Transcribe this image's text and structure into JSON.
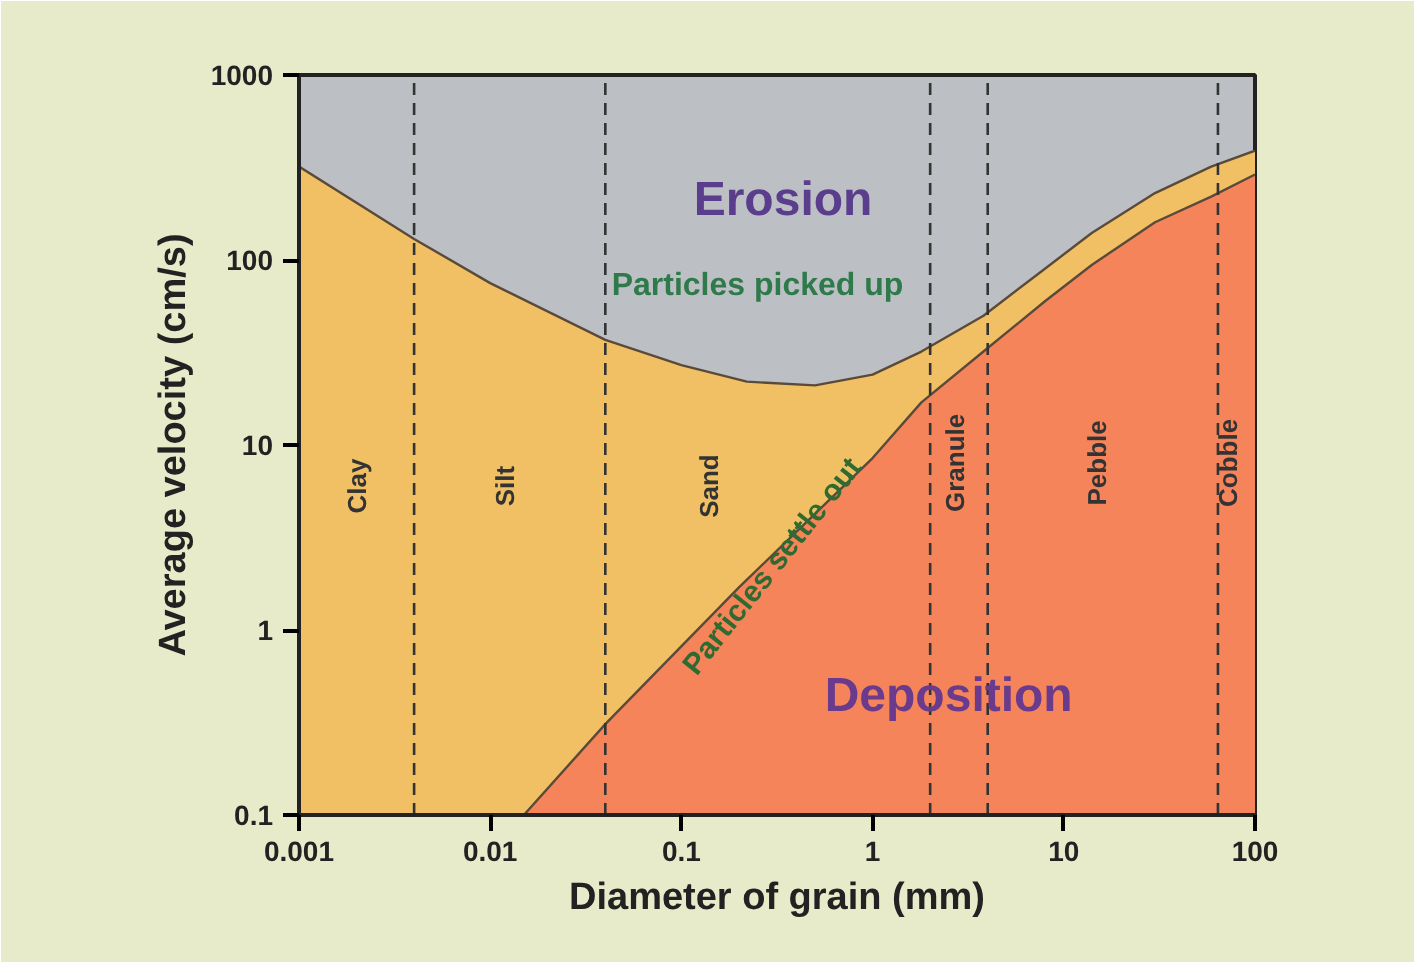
{
  "chart_data": {
    "type": "area",
    "xlabel": "Diameter of grain (mm)",
    "ylabel": "Average velocity (cm/s)",
    "log": "xy",
    "xlim": [
      0.001,
      100
    ],
    "ylim": [
      0.1,
      1000
    ],
    "xticks": [
      0.001,
      0.01,
      0.1,
      1,
      10,
      100
    ],
    "yticks": [
      0.1,
      1,
      10,
      100,
      1000
    ],
    "grid": false,
    "series": [
      {
        "color": "#f2c064",
        "x": [
          0.001,
          0.004,
          0.01,
          0.04,
          0.1,
          0.22,
          0.5,
          1,
          1.8,
          3.8,
          8,
          14,
          30,
          59,
          100
        ],
        "values": [
          320,
          130,
          75,
          37,
          27,
          22,
          21,
          24,
          32,
          50,
          90,
          140,
          230,
          320,
          390
        ]
      },
      {
        "color": "#f5845a",
        "x": [
          0.015,
          0.04,
          0.2,
          1,
          1.8,
          3.8,
          8,
          14,
          30,
          59,
          100
        ],
        "values": [
          0.1,
          0.31,
          1.7,
          8.5,
          17,
          32,
          60,
          94,
          160,
          220,
          290
        ]
      }
    ],
    "ref_lines": [
      {
        "axis": "x",
        "value": 0.004,
        "line_style": "dashed"
      },
      {
        "axis": "x",
        "value": 0.04,
        "line_style": "dashed"
      },
      {
        "axis": "x",
        "value": 2,
        "line_style": "dashed"
      },
      {
        "axis": "x",
        "value": 4,
        "line_style": "dashed"
      },
      {
        "axis": "x",
        "value": 64,
        "line_style": "dashed"
      }
    ],
    "annotations": [
      "Erosion",
      "Particles picked up",
      "Particles settle out",
      "Deposition",
      "Clay",
      "Silt",
      "Sand",
      "Granule",
      "Pebble",
      "Cobble"
    ]
  }
}
